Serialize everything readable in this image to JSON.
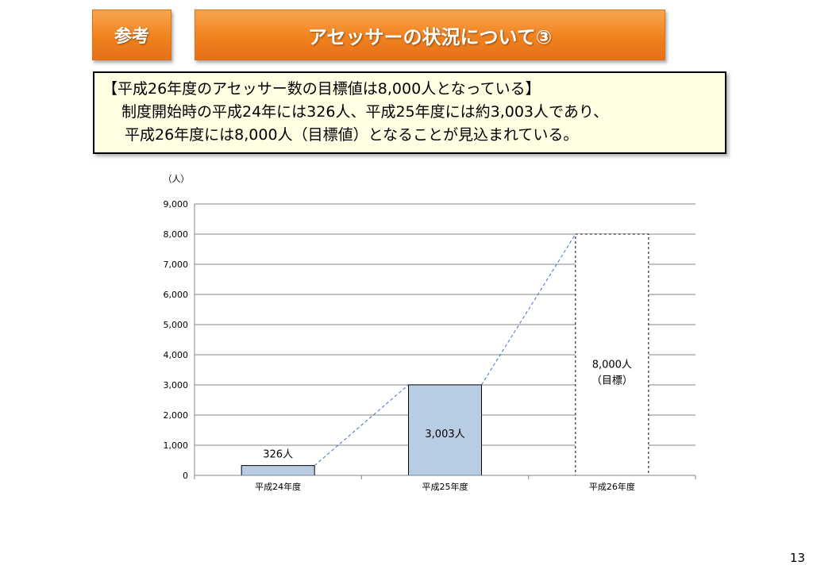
{
  "header": {
    "tag": "参考",
    "title": "アセッサーの状況について③"
  },
  "summary": {
    "line1": "【平成26年度のアセッサー数の目標値は8,000人となっている】",
    "line2": "制度開始時の平成24年には326人、平成25年度には約3,003人であり、",
    "line3": "平成26年度には8,000人（目標値）となることが見込まれている。"
  },
  "chart_data": {
    "type": "bar",
    "ylabel": "（人）",
    "categories": [
      "平成24年度",
      "平成25年度",
      "平成26年度"
    ],
    "values": [
      326,
      3003,
      8000
    ],
    "data_labels": [
      "326人",
      "3,003人",
      "8,000人\n（目標）"
    ],
    "target_flags": [
      false,
      false,
      true
    ],
    "ylim": [
      0,
      9000
    ],
    "yticks": [
      0,
      1000,
      2000,
      3000,
      4000,
      5000,
      6000,
      7000,
      8000,
      9000
    ],
    "ytick_labels": [
      "0",
      "1,000",
      "2,000",
      "3,000",
      "4,000",
      "5,000",
      "6,000",
      "7,000",
      "8,000",
      "9,000"
    ],
    "grid": true,
    "connector_lines": "dashed",
    "colors": {
      "bar_fill": "#b8cce4",
      "bar_stroke": "#000000",
      "connector": "#4472c4",
      "grid": "#868686"
    }
  },
  "page_number": "13"
}
